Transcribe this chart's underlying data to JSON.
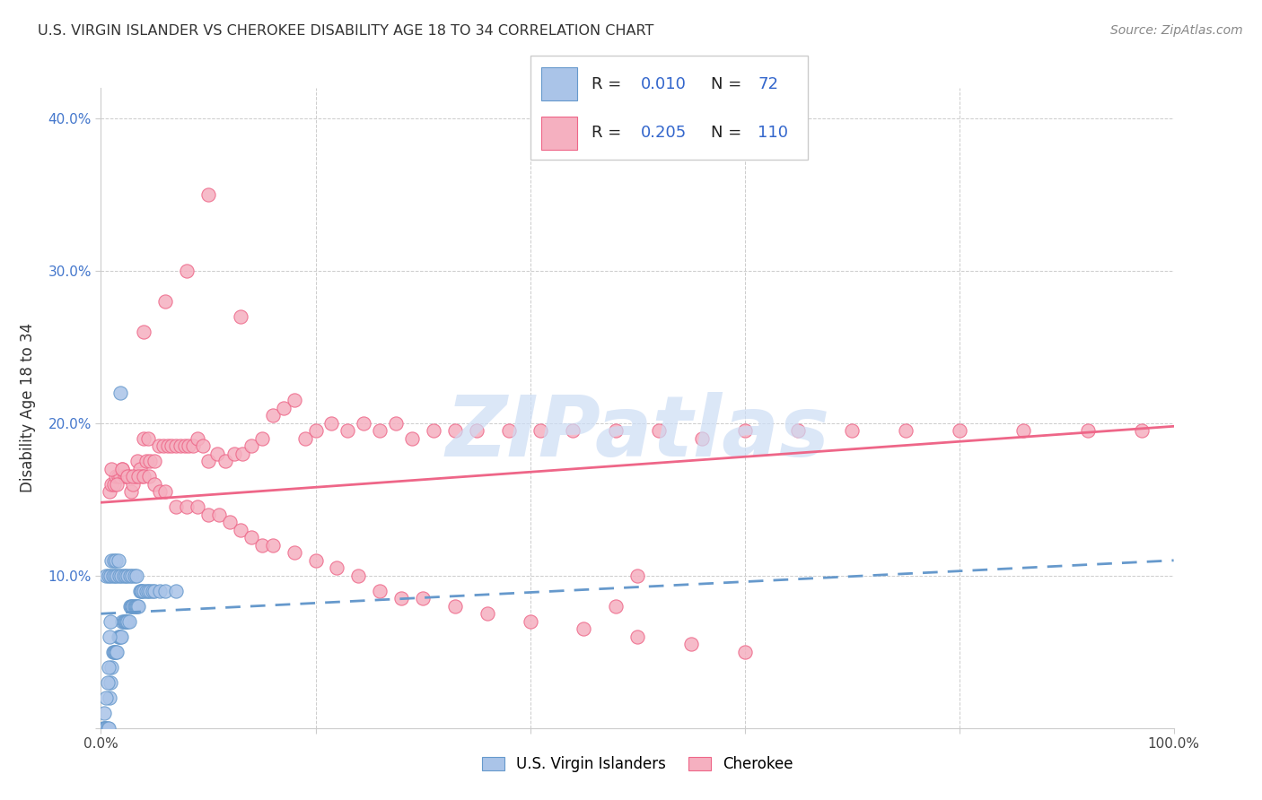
{
  "title": "U.S. VIRGIN ISLANDER VS CHEROKEE DISABILITY AGE 18 TO 34 CORRELATION CHART",
  "source": "Source: ZipAtlas.com",
  "ylabel": "Disability Age 18 to 34",
  "xlim": [
    0.0,
    1.0
  ],
  "ylim": [
    0.0,
    0.42
  ],
  "xticks": [
    0.0,
    0.2,
    0.4,
    0.6,
    0.8,
    1.0
  ],
  "xticklabels": [
    "0.0%",
    "",
    "",
    "",
    "",
    "100.0%"
  ],
  "yticks": [
    0.0,
    0.1,
    0.2,
    0.3,
    0.4
  ],
  "yticklabels": [
    "",
    "10.0%",
    "20.0%",
    "30.0%",
    "40.0%"
  ],
  "color_vi": "#aac4e8",
  "color_cherokee": "#f5b0c0",
  "edge_vi": "#6699cc",
  "edge_cherokee": "#ee6688",
  "trendline_vi_color": "#6699cc",
  "trendline_cher_color": "#ee6688",
  "watermark": "ZIPatlas",
  "watermark_color": "#ccddf5",
  "vi_scatter_x": [
    0.002,
    0.003,
    0.004,
    0.005,
    0.006,
    0.007,
    0.008,
    0.009,
    0.01,
    0.011,
    0.012,
    0.013,
    0.014,
    0.015,
    0.016,
    0.017,
    0.018,
    0.019,
    0.02,
    0.021,
    0.022,
    0.023,
    0.024,
    0.025,
    0.026,
    0.027,
    0.028,
    0.029,
    0.03,
    0.031,
    0.032,
    0.033,
    0.034,
    0.035,
    0.036,
    0.037,
    0.038,
    0.04,
    0.042,
    0.044,
    0.046,
    0.048,
    0.05,
    0.055,
    0.06,
    0.07,
    0.005,
    0.007,
    0.009,
    0.011,
    0.013,
    0.015,
    0.017,
    0.019,
    0.021,
    0.023,
    0.025,
    0.027,
    0.029,
    0.031,
    0.033,
    0.003,
    0.005,
    0.006,
    0.007,
    0.008,
    0.009,
    0.01,
    0.012,
    0.014,
    0.016,
    0.018
  ],
  "vi_scatter_y": [
    0.0,
    0.0,
    0.0,
    0.0,
    0.0,
    0.0,
    0.02,
    0.03,
    0.04,
    0.05,
    0.05,
    0.05,
    0.05,
    0.05,
    0.06,
    0.06,
    0.06,
    0.06,
    0.07,
    0.07,
    0.07,
    0.07,
    0.07,
    0.07,
    0.07,
    0.08,
    0.08,
    0.08,
    0.08,
    0.08,
    0.08,
    0.08,
    0.08,
    0.08,
    0.09,
    0.09,
    0.09,
    0.09,
    0.09,
    0.09,
    0.09,
    0.09,
    0.09,
    0.09,
    0.09,
    0.09,
    0.1,
    0.1,
    0.1,
    0.1,
    0.1,
    0.1,
    0.1,
    0.1,
    0.1,
    0.1,
    0.1,
    0.1,
    0.1,
    0.1,
    0.1,
    0.01,
    0.02,
    0.03,
    0.04,
    0.06,
    0.07,
    0.11,
    0.11,
    0.11,
    0.11,
    0.22
  ],
  "cherokee_scatter_x": [
    0.008,
    0.01,
    0.012,
    0.014,
    0.016,
    0.018,
    0.02,
    0.022,
    0.024,
    0.026,
    0.028,
    0.03,
    0.032,
    0.034,
    0.036,
    0.038,
    0.04,
    0.042,
    0.044,
    0.046,
    0.05,
    0.054,
    0.058,
    0.062,
    0.066,
    0.07,
    0.074,
    0.078,
    0.082,
    0.086,
    0.09,
    0.095,
    0.1,
    0.108,
    0.116,
    0.124,
    0.132,
    0.14,
    0.15,
    0.16,
    0.17,
    0.18,
    0.19,
    0.2,
    0.215,
    0.23,
    0.245,
    0.26,
    0.275,
    0.29,
    0.31,
    0.33,
    0.35,
    0.38,
    0.41,
    0.44,
    0.48,
    0.52,
    0.56,
    0.6,
    0.65,
    0.7,
    0.75,
    0.8,
    0.86,
    0.92,
    0.97,
    0.01,
    0.015,
    0.02,
    0.025,
    0.03,
    0.035,
    0.04,
    0.045,
    0.05,
    0.055,
    0.06,
    0.07,
    0.08,
    0.09,
    0.1,
    0.11,
    0.12,
    0.13,
    0.14,
    0.15,
    0.16,
    0.18,
    0.2,
    0.22,
    0.24,
    0.26,
    0.28,
    0.3,
    0.33,
    0.36,
    0.4,
    0.45,
    0.5,
    0.55,
    0.6,
    0.04,
    0.06,
    0.08,
    0.1,
    0.13,
    0.5,
    0.48
  ],
  "cherokee_scatter_y": [
    0.155,
    0.16,
    0.16,
    0.165,
    0.165,
    0.165,
    0.17,
    0.165,
    0.165,
    0.165,
    0.155,
    0.16,
    0.165,
    0.175,
    0.17,
    0.165,
    0.19,
    0.175,
    0.19,
    0.175,
    0.175,
    0.185,
    0.185,
    0.185,
    0.185,
    0.185,
    0.185,
    0.185,
    0.185,
    0.185,
    0.19,
    0.185,
    0.175,
    0.18,
    0.175,
    0.18,
    0.18,
    0.185,
    0.19,
    0.205,
    0.21,
    0.215,
    0.19,
    0.195,
    0.2,
    0.195,
    0.2,
    0.195,
    0.2,
    0.19,
    0.195,
    0.195,
    0.195,
    0.195,
    0.195,
    0.195,
    0.195,
    0.195,
    0.19,
    0.195,
    0.195,
    0.195,
    0.195,
    0.195,
    0.195,
    0.195,
    0.195,
    0.17,
    0.16,
    0.17,
    0.165,
    0.165,
    0.165,
    0.165,
    0.165,
    0.16,
    0.155,
    0.155,
    0.145,
    0.145,
    0.145,
    0.14,
    0.14,
    0.135,
    0.13,
    0.125,
    0.12,
    0.12,
    0.115,
    0.11,
    0.105,
    0.1,
    0.09,
    0.085,
    0.085,
    0.08,
    0.075,
    0.07,
    0.065,
    0.06,
    0.055,
    0.05,
    0.26,
    0.28,
    0.3,
    0.35,
    0.27,
    0.1,
    0.08
  ],
  "vi_trendline": [
    0.0,
    1.0,
    0.075,
    0.11
  ],
  "cher_trendline": [
    0.0,
    1.0,
    0.148,
    0.198
  ]
}
